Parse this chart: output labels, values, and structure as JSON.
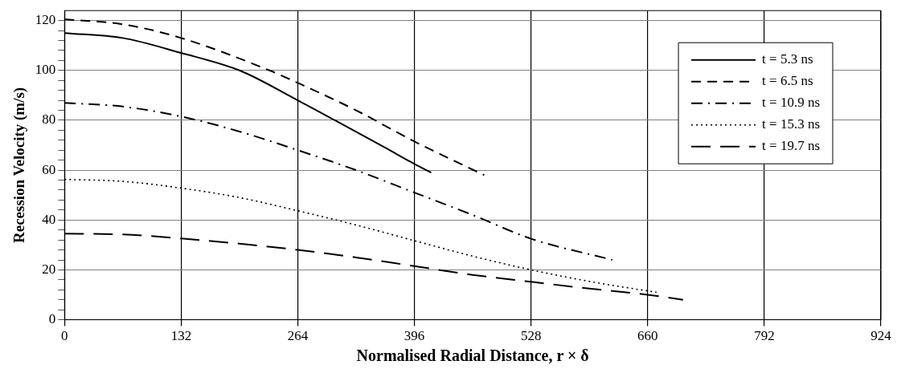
{
  "chart_data": {
    "type": "line",
    "xlabel": "Normalised Radial Distance, r × δ",
    "ylabel": "Recession Velocity (m/s)",
    "xlim": [
      0,
      924
    ],
    "xticks": [
      0,
      132,
      264,
      396,
      528,
      660,
      792,
      924
    ],
    "ylim": [
      0,
      124
    ],
    "yticks": [
      0,
      {
        "value": 4,
        "label": null
      },
      {
        "value": 8,
        "label": null
      },
      {
        "value": 12,
        "label": null
      },
      {
        "value": 16,
        "label": null
      },
      20,
      {
        "value": 24,
        "label": null
      },
      {
        "value": 28,
        "label": null
      },
      {
        "value": 32,
        "label": null
      },
      {
        "value": 36,
        "label": null
      },
      40,
      {
        "value": 44,
        "label": null
      },
      {
        "value": 48,
        "label": null
      },
      {
        "value": 52,
        "label": null
      },
      {
        "value": 56,
        "label": null
      },
      60,
      {
        "value": 64,
        "label": null
      },
      {
        "value": 68,
        "label": null
      },
      {
        "value": 72,
        "label": null
      },
      {
        "value": 76,
        "label": null
      },
      80,
      {
        "value": 84,
        "label": null
      },
      {
        "value": 88,
        "label": null
      },
      {
        "value": 92,
        "label": null
      },
      {
        "value": 96,
        "label": null
      },
      100,
      {
        "value": 104,
        "label": null
      },
      {
        "value": 108,
        "label": null
      },
      {
        "value": 112,
        "label": null
      },
      {
        "value": 116,
        "label": null
      },
      120
    ],
    "grid": true,
    "legend": "top right",
    "marker": "none",
    "series": [
      {
        "name": "t = 5.3 ns",
        "color": "#000000",
        "line_style": "solid",
        "x": [
          0,
          66,
          132,
          198,
          264,
          306,
          363,
          396,
          415
        ],
        "values": [
          115,
          113,
          107,
          100,
          88,
          80,
          69,
          62.5,
          59
        ]
      },
      {
        "name": "t = 6.5 ns",
        "color": "#000000",
        "line_style": "dashed",
        "x": [
          0,
          66,
          132,
          232,
          264,
          330,
          396,
          475
        ],
        "values": [
          120.5,
          118.5,
          113,
          100,
          95,
          84,
          71.5,
          58
        ]
      },
      {
        "name": "t = 10.9 ns",
        "color": "#000000",
        "line_style": "dashdot",
        "x": [
          0,
          66,
          132,
          198,
          264,
          330,
          396,
          462,
          528,
          620
        ],
        "values": [
          87,
          85.5,
          81.5,
          75.5,
          68,
          60,
          51,
          42,
          32.5,
          24
        ]
      },
      {
        "name": "t = 15.3 ns",
        "color": "#000000",
        "line_style": "dotted",
        "x": [
          0,
          66,
          132,
          198,
          264,
          330,
          396,
          462,
          528,
          600,
          670
        ],
        "values": [
          56.3,
          55.5,
          52.8,
          49,
          43.7,
          38,
          31.7,
          25.5,
          20,
          15,
          11
        ]
      },
      {
        "name": "t = 19.7 ns",
        "color": "#000000",
        "line_style": "longdash",
        "x": [
          0,
          66,
          132,
          198,
          264,
          330,
          396,
          462,
          528,
          594,
          660,
          700
        ],
        "values": [
          34.5,
          34.2,
          32.6,
          30.5,
          28,
          25,
          21.5,
          18,
          15.2,
          12.5,
          10,
          8
        ]
      }
    ]
  }
}
